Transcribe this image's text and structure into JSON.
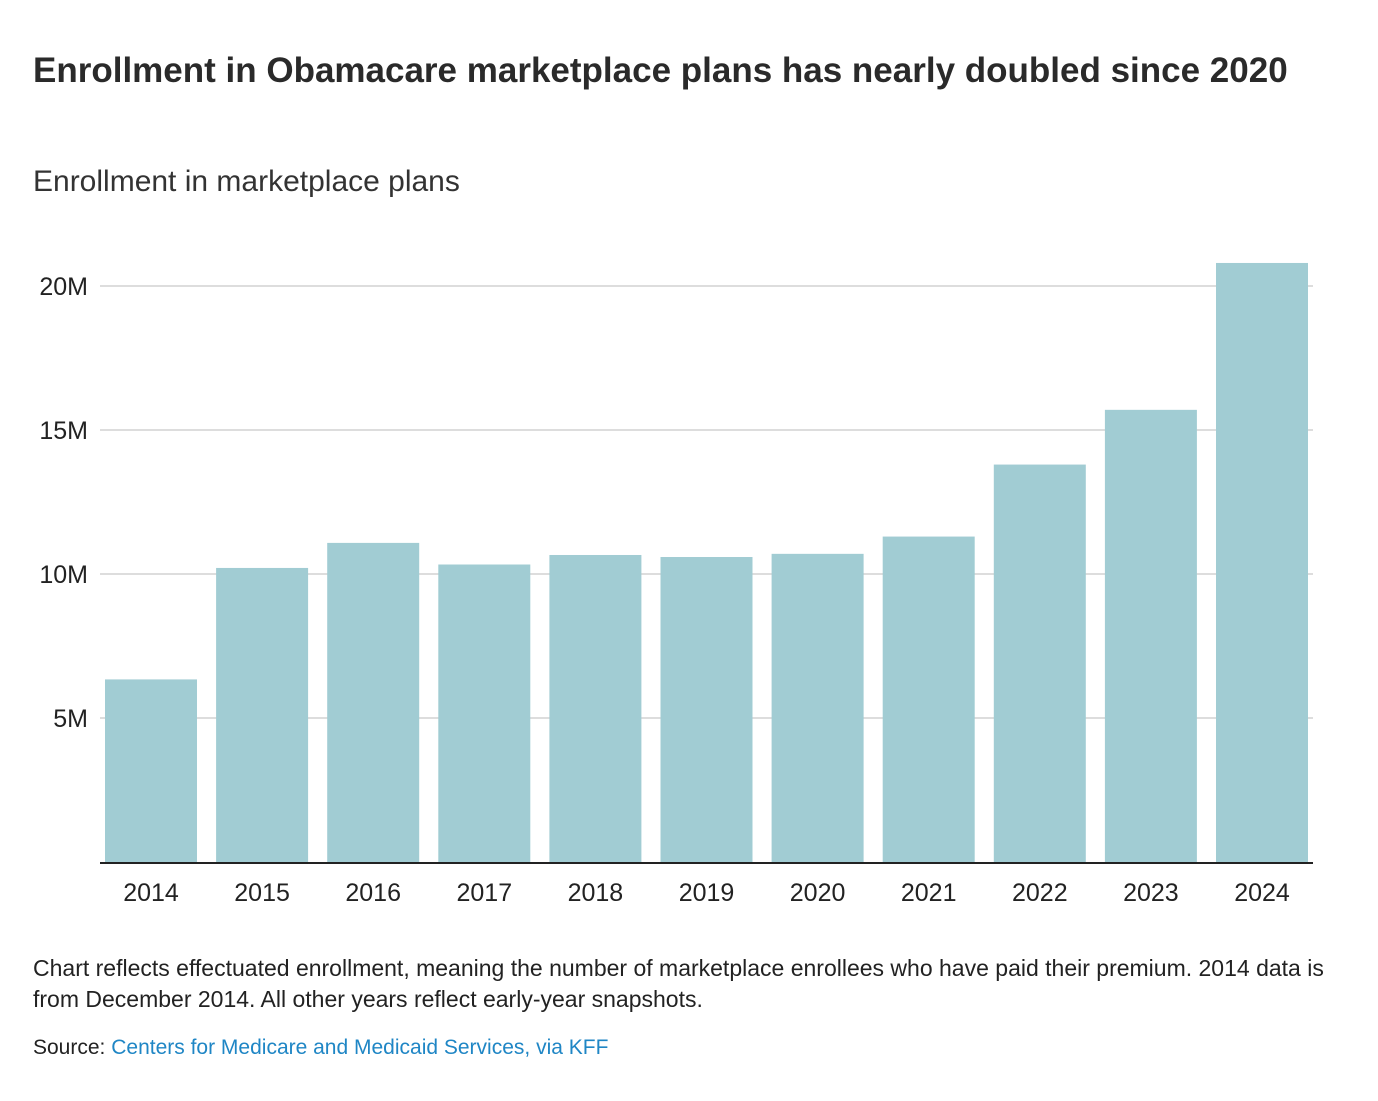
{
  "title": "Enrollment in Obamacare marketplace plans has nearly doubled since 2020",
  "subtitle": "Enrollment in marketplace plans",
  "note": "Chart reflects effectuated enrollment, meaning the number of marketplace enrollees who have paid their premium. 2014 data is from December 2014. All other years reflect early-year snapshots.",
  "source": {
    "label": "Source:",
    "link_text": "Centers for Medicare and Medicaid Services, via KFF"
  },
  "colors": {
    "bar": "#a1ccd3",
    "gridline": "#dddddd",
    "axis": "#222222",
    "link": "#1f86c5"
  },
  "chart_data": {
    "type": "bar",
    "title": "Enrollment in Obamacare marketplace plans has nearly doubled since 2020",
    "subtitle": "Enrollment in marketplace plans",
    "xlabel": "",
    "ylabel": "",
    "categories": [
      "2014",
      "2015",
      "2016",
      "2017",
      "2018",
      "2019",
      "2020",
      "2021",
      "2022",
      "2023",
      "2024"
    ],
    "values": [
      6.34,
      10.21,
      11.08,
      10.33,
      10.66,
      10.59,
      10.7,
      11.3,
      13.8,
      15.7,
      20.8
    ],
    "unit": "M",
    "ylim": [
      0,
      21
    ],
    "yticks": [
      5,
      10,
      15,
      20
    ],
    "ytick_labels": [
      "5M",
      "10M",
      "15M",
      "20M"
    ],
    "grid": true,
    "legend": "none"
  }
}
